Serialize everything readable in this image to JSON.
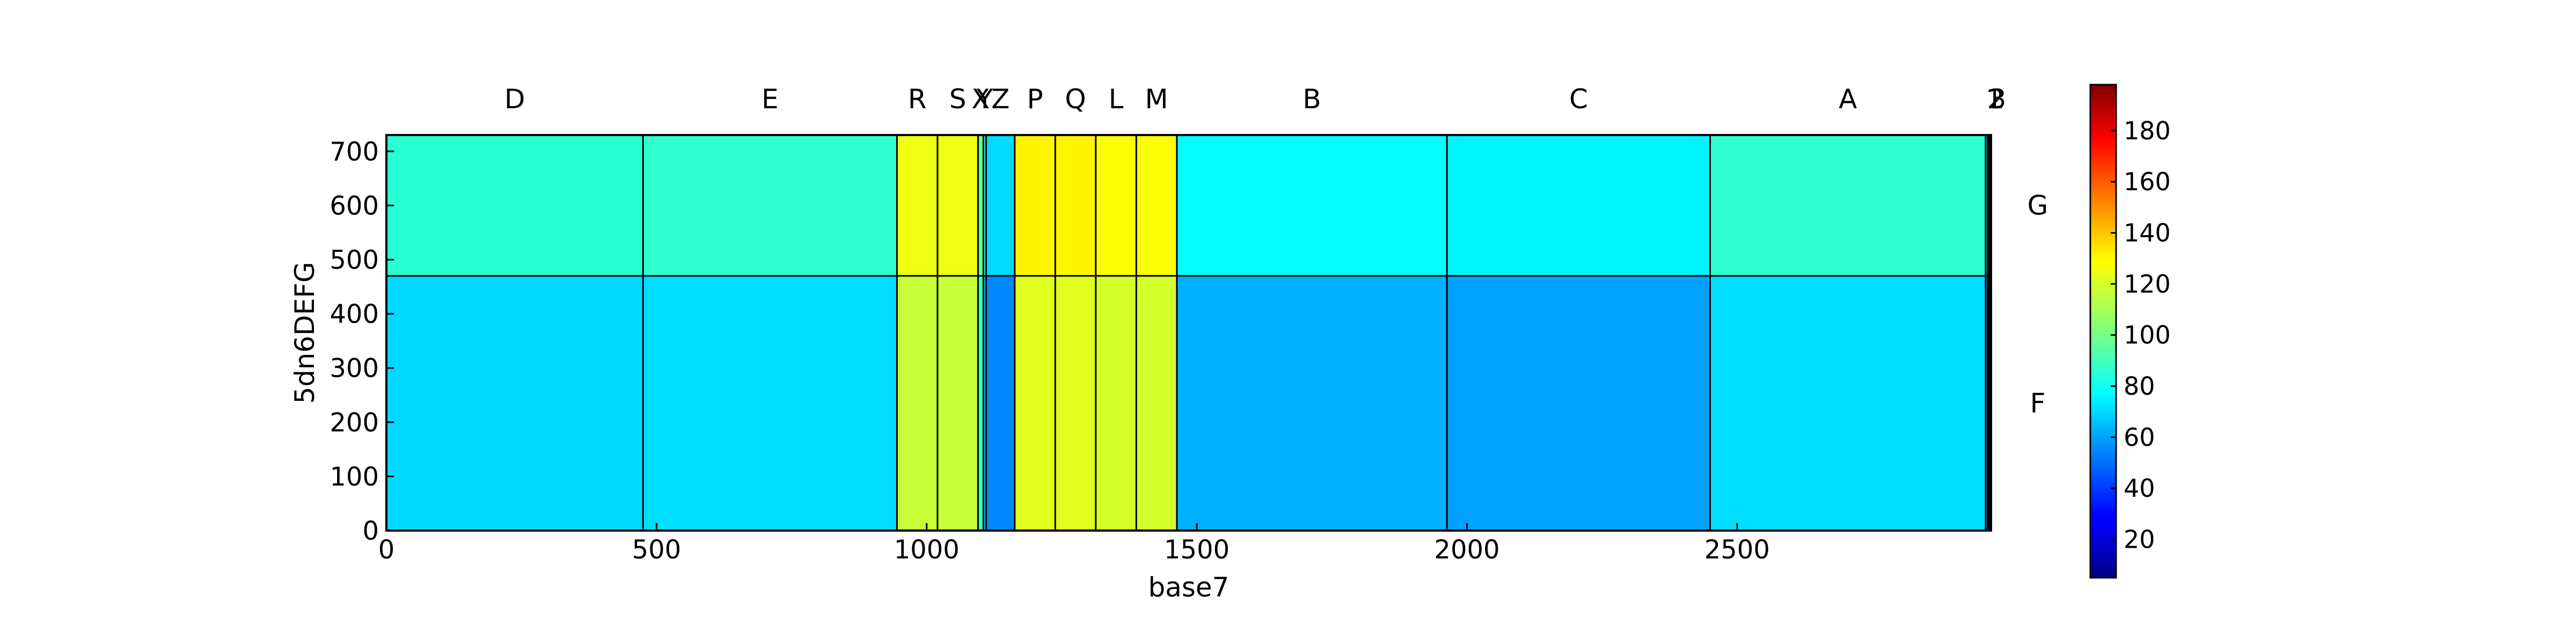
{
  "chart_data": {
    "type": "heatmap",
    "xlabel": "base7",
    "ylabel": "5dn6DEFG",
    "xlim": [
      0,
      2970
    ],
    "ylim": [
      0,
      730
    ],
    "x_ticks": [
      0,
      500,
      1000,
      1500,
      2000,
      2500
    ],
    "y_ticks": [
      0,
      100,
      200,
      300,
      400,
      500,
      600,
      700
    ],
    "colorbar": {
      "colormap": "jet",
      "range": [
        5,
        198
      ],
      "ticks": [
        20,
        40,
        60,
        80,
        100,
        120,
        140,
        160,
        180
      ]
    },
    "x_segments": [
      {
        "label": "D",
        "start": 0,
        "end": 475,
        "level": 70
      },
      {
        "label": "E",
        "start": 475,
        "end": 945,
        "level": 72
      },
      {
        "label": "R",
        "start": 945,
        "end": 1020,
        "level": 160
      },
      {
        "label": "S",
        "start": 1020,
        "end": 1095,
        "level": 160
      },
      {
        "label": "X",
        "start": 1095,
        "end": 1105,
        "level": 110
      },
      {
        "label": "Y",
        "start": 1105,
        "end": 1110,
        "level": 60
      },
      {
        "label": "Z",
        "start": 1110,
        "end": 1163,
        "level": 40
      },
      {
        "label": "P",
        "start": 1163,
        "end": 1238,
        "level": 170
      },
      {
        "label": "Q",
        "start": 1238,
        "end": 1313,
        "level": 170
      },
      {
        "label": "L",
        "start": 1313,
        "end": 1388,
        "level": 165
      },
      {
        "label": "M",
        "start": 1388,
        "end": 1463,
        "level": 165
      },
      {
        "label": "B",
        "start": 1463,
        "end": 1963,
        "level": 55
      },
      {
        "label": "C",
        "start": 1963,
        "end": 2450,
        "level": 50
      },
      {
        "label": "A",
        "start": 2450,
        "end": 2960,
        "level": 72
      },
      {
        "label": "1",
        "start": 2960,
        "end": 2964,
        "level": 40
      },
      {
        "label": "2",
        "start": 2964,
        "end": 2967,
        "level": 40
      },
      {
        "label": "3",
        "start": 2967,
        "end": 2970,
        "level": 40
      }
    ],
    "y_segments": [
      {
        "label": "F",
        "start": 0,
        "end": 470,
        "level": 70
      },
      {
        "label": "G",
        "start": 470,
        "end": 730,
        "level": 85
      }
    ]
  }
}
